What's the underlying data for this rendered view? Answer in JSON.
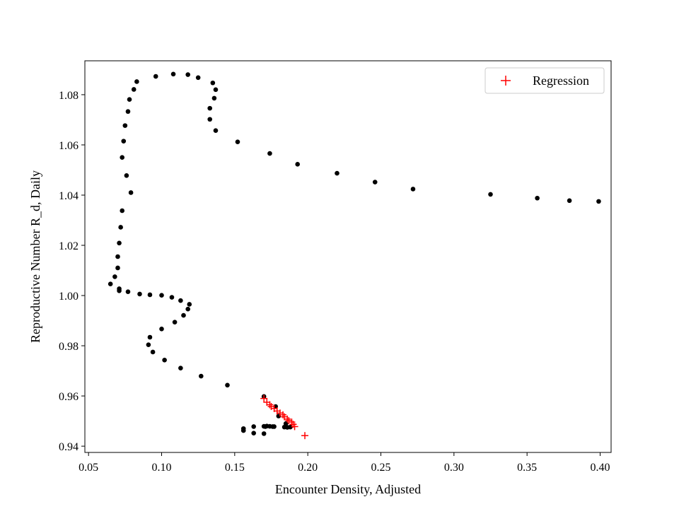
{
  "chart_data": {
    "type": "scatter",
    "xlabel": "Encounter Density, Adjusted",
    "ylabel": "Reproductive Number R_d, Daily",
    "xlim": [
      0.0475,
      0.4075
    ],
    "ylim": [
      0.9375,
      1.0935
    ],
    "x_ticks": [
      0.05,
      0.1,
      0.15,
      0.2,
      0.25,
      0.3,
      0.35,
      0.4
    ],
    "x_tick_labels": [
      "0.05",
      "0.10",
      "0.15",
      "0.20",
      "0.25",
      "0.30",
      "0.35",
      "0.40"
    ],
    "y_ticks": [
      0.94,
      0.96,
      0.98,
      1.0,
      1.02,
      1.04,
      1.06,
      1.08
    ],
    "y_tick_labels": [
      "0.94",
      "0.96",
      "0.98",
      "1.00",
      "1.02",
      "1.04",
      "1.06",
      "1.08"
    ],
    "grid": false,
    "legend": {
      "position": "top-right",
      "entries": [
        "Regression"
      ]
    },
    "series": [
      {
        "marker": "circle",
        "color": "#000000",
        "x": [
          0.399,
          0.379,
          0.357,
          0.325,
          0.272,
          0.246,
          0.22,
          0.193,
          0.174,
          0.152,
          0.137,
          0.133,
          0.133,
          0.136,
          0.137,
          0.135,
          0.125,
          0.118,
          0.108,
          0.096,
          0.083,
          0.081,
          0.078,
          0.077,
          0.075,
          0.074,
          0.073,
          0.076,
          0.079,
          0.073,
          0.072,
          0.071,
          0.07,
          0.07,
          0.068,
          0.065,
          0.071,
          0.071,
          0.077,
          0.085,
          0.092,
          0.1,
          0.107,
          0.113,
          0.119,
          0.118,
          0.115,
          0.109,
          0.1,
          0.092,
          0.091,
          0.094,
          0.102,
          0.113,
          0.127,
          0.145,
          0.17,
          0.178,
          0.18,
          0.185,
          0.188,
          0.186,
          0.184,
          0.176,
          0.174,
          0.172,
          0.17,
          0.171,
          0.163,
          0.163,
          0.156,
          0.156,
          0.17,
          0.177
        ],
        "y": [
          1.0375,
          1.0378,
          1.0388,
          1.0403,
          1.0424,
          1.0452,
          1.0487,
          1.0523,
          1.0566,
          1.0612,
          1.0657,
          1.0702,
          1.0746,
          1.0786,
          1.082,
          1.0847,
          1.0868,
          1.088,
          1.0882,
          1.0873,
          1.0852,
          1.0821,
          1.0781,
          1.0733,
          1.0677,
          1.0615,
          1.055,
          1.0478,
          1.041,
          1.0338,
          1.0272,
          1.0209,
          1.0155,
          1.011,
          1.0075,
          1.0046,
          1.0027,
          1.0019,
          1.0015,
          1.0006,
          1.0003,
          1.0001,
          0.9993,
          0.998,
          0.9965,
          0.9946,
          0.9921,
          0.9894,
          0.9867,
          0.9834,
          0.9804,
          0.9775,
          0.9743,
          0.9711,
          0.9679,
          0.9643,
          0.9598,
          0.9558,
          0.952,
          0.949,
          0.9476,
          0.9475,
          0.9476,
          0.9478,
          0.9479,
          0.948,
          0.9479,
          0.9478,
          0.9478,
          0.9452,
          0.9462,
          0.947,
          0.945,
          0.9478
        ]
      },
      {
        "name": "Regression",
        "marker": "plus",
        "color": "#ff0000",
        "x": [
          0.17,
          0.172,
          0.174,
          0.175,
          0.177,
          0.179,
          0.181,
          0.183,
          0.184,
          0.186,
          0.187,
          0.189,
          0.19,
          0.191,
          0.198
        ],
        "y": [
          0.959,
          0.9575,
          0.9565,
          0.9558,
          0.955,
          0.954,
          0.9532,
          0.9525,
          0.9517,
          0.9508,
          0.9502,
          0.9496,
          0.9487,
          0.9478,
          0.9442
        ]
      }
    ]
  }
}
